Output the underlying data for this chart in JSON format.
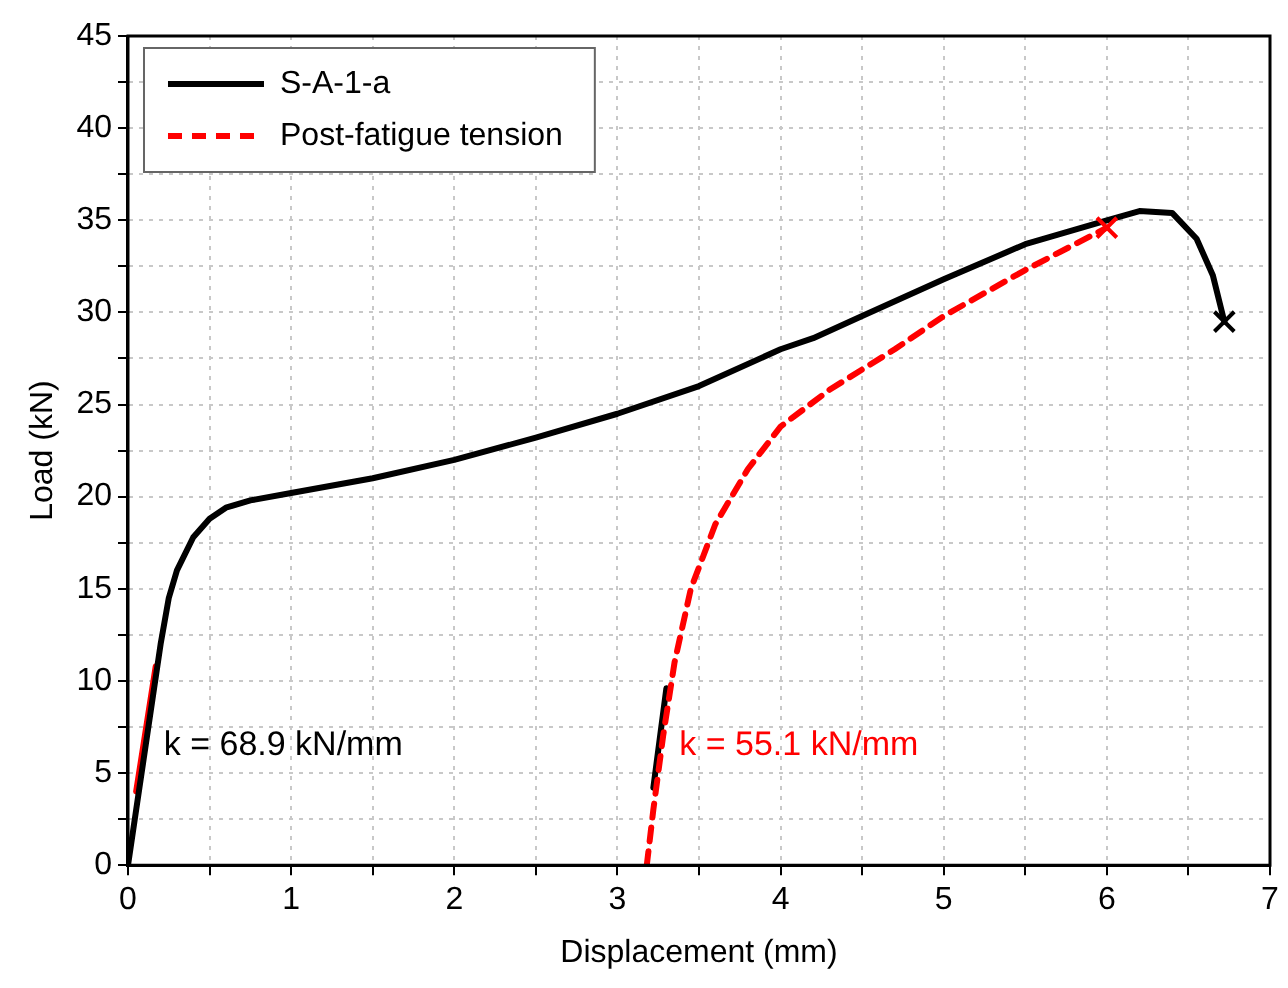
{
  "chart_data": {
    "type": "line",
    "xlabel": "Displacement (mm)",
    "ylabel": "Load (kN)",
    "xlim": [
      0,
      7
    ],
    "ylim": [
      0,
      45
    ],
    "xticks": [
      0,
      {
        "value": 0.5,
        "label": null
      },
      1,
      {
        "value": 1.5,
        "label": null
      },
      2,
      {
        "value": 2.5,
        "label": null
      },
      3,
      {
        "value": 3.5,
        "label": null
      },
      4,
      {
        "value": 4.5,
        "label": null
      },
      5,
      {
        "value": 5.5,
        "label": null
      },
      6,
      {
        "value": 6.5,
        "label": null
      },
      7
    ],
    "yticks": [
      0,
      {
        "value": 2.5,
        "label": null
      },
      5,
      {
        "value": 7.5,
        "label": null
      },
      10,
      {
        "value": 12.5,
        "label": null
      },
      15,
      {
        "value": 17.5,
        "label": null
      },
      20,
      {
        "value": 22.5,
        "label": null
      },
      25,
      {
        "value": 27.5,
        "label": null
      },
      30,
      {
        "value": 32.5,
        "label": null
      },
      35,
      {
        "value": 37.5,
        "label": null
      },
      40,
      {
        "value": 42.5,
        "label": null
      },
      45
    ],
    "grid": true,
    "legend": "top left",
    "series": [
      {
        "name": "S-A-1-a",
        "color": "#000000",
        "line_style": "solid",
        "x": [
          0,
          0.05,
          0.1,
          0.15,
          0.2,
          0.25,
          0.3,
          0.4,
          0.5,
          0.6,
          0.75,
          1,
          1.5,
          2,
          2.5,
          3,
          3.5,
          4,
          4.2,
          4.5,
          5,
          5.5,
          6,
          6.2,
          6.4,
          6.55,
          6.65,
          6.72
        ],
        "values": [
          0,
          3,
          6,
          9,
          12,
          14.5,
          16,
          17.8,
          18.8,
          19.4,
          19.8,
          20.2,
          21,
          22,
          23.2,
          24.5,
          26,
          28,
          28.6,
          29.8,
          31.8,
          33.7,
          35,
          35.5,
          35.4,
          34,
          32,
          29.5
        ]
      },
      {
        "name": "Post-fatigue tension",
        "color": "#ff0000",
        "line_style": "dashed",
        "x": [
          3.18,
          3.22,
          3.28,
          3.35,
          3.45,
          3.6,
          3.8,
          4,
          4.3,
          4.7,
          5,
          5.5,
          6
        ],
        "values": [
          0,
          3,
          7,
          11,
          15,
          18.5,
          21.5,
          23.8,
          25.8,
          28,
          29.8,
          32.3,
          34.6
        ]
      },
      {
        "type": "line",
        "color": "#ff0000",
        "line_style": "solid",
        "x": [
          0.05,
          0.17
        ],
        "values": [
          4,
          10.8
        ]
      },
      {
        "type": "line",
        "color": "#000000",
        "line_style": "solid",
        "x": [
          3.22,
          3.3
        ],
        "values": [
          4.2,
          9.6
        ]
      },
      {
        "type": "scatter",
        "color": "#000000",
        "marker": "cross",
        "x": [
          6.72
        ],
        "values": [
          29.5
        ]
      },
      {
        "type": "scatter",
        "color": "#ff0000",
        "marker": "cross",
        "x": [
          6
        ],
        "values": [
          34.6
        ]
      }
    ],
    "annotations": [
      {
        "text": "k = 68.9 kN/mm",
        "x": 0.17,
        "y": 6.5
      },
      {
        "text": "k = 55.1 kN/mm",
        "x": 3.33,
        "y": 6.5
      }
    ]
  }
}
